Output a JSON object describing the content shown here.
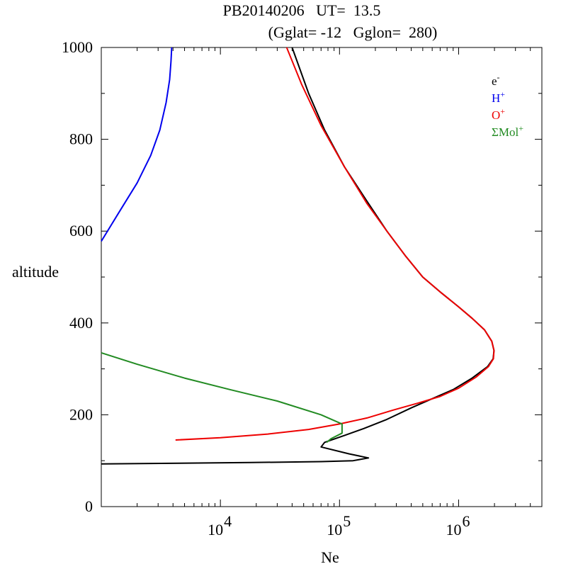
{
  "chart_data": {
    "type": "line",
    "title_line1": "PB20140206   UT=  13.5",
    "title_line2": "(Gglat= -12   Gglon=  280)",
    "xlabel": "Ne",
    "ylabel": "altitude",
    "xscale": "log",
    "xlim": [
      1000,
      5000000
    ],
    "ylim": [
      0,
      1000
    ],
    "y_ticks": [
      {
        "value": 0,
        "label": "0"
      },
      {
        "value": 200,
        "label": "200"
      },
      {
        "value": 400,
        "label": "400"
      },
      {
        "value": 600,
        "label": "600"
      },
      {
        "value": 800,
        "label": "800"
      },
      {
        "value": 1000,
        "label": "1000"
      }
    ],
    "x_ticks": [
      {
        "value": 10000,
        "base": "10",
        "exp": "4"
      },
      {
        "value": 100000,
        "base": "10",
        "exp": "5"
      },
      {
        "value": 1000000,
        "base": "10",
        "exp": "6"
      }
    ],
    "legend_position": "top-right",
    "series": [
      {
        "name": "e-",
        "legend_base": "e",
        "legend_sup": "-",
        "color": "#000000",
        "points": [
          [
            1000,
            93
          ],
          [
            18000,
            96
          ],
          [
            70000,
            98
          ],
          [
            130000,
            100
          ],
          [
            175000,
            106
          ],
          [
            120000,
            115
          ],
          [
            70000,
            130
          ],
          [
            75000,
            140
          ],
          [
            110000,
            155
          ],
          [
            160000,
            170
          ],
          [
            250000,
            190
          ],
          [
            400000,
            215
          ],
          [
            600000,
            235
          ],
          [
            900000,
            255
          ],
          [
            1300000,
            280
          ],
          [
            1750000,
            305
          ],
          [
            1950000,
            322
          ],
          [
            1980000,
            340
          ],
          [
            1900000,
            360
          ],
          [
            1650000,
            385
          ],
          [
            1300000,
            410
          ],
          [
            1000000,
            435
          ],
          [
            720000,
            465
          ],
          [
            500000,
            500
          ],
          [
            360000,
            545
          ],
          [
            250000,
            600
          ],
          [
            170000,
            665
          ],
          [
            110000,
            740
          ],
          [
            75000,
            820
          ],
          [
            55000,
            900
          ],
          [
            40000,
            1000
          ]
        ]
      },
      {
        "name": "H+",
        "legend_base": "H",
        "legend_sup": "+",
        "color": "#0000ee",
        "points": [
          [
            1000,
            578
          ],
          [
            1400,
            640
          ],
          [
            2000,
            705
          ],
          [
            2600,
            765
          ],
          [
            3100,
            820
          ],
          [
            3500,
            880
          ],
          [
            3750,
            930
          ],
          [
            3850,
            970
          ],
          [
            3900,
            1000
          ]
        ]
      },
      {
        "name": "O+",
        "legend_base": "O",
        "legend_sup": "+",
        "color": "#ee0000",
        "points": [
          [
            4200,
            145
          ],
          [
            10000,
            150
          ],
          [
            25000,
            158
          ],
          [
            55000,
            168
          ],
          [
            100000,
            180
          ],
          [
            170000,
            193
          ],
          [
            280000,
            210
          ],
          [
            450000,
            225
          ],
          [
            700000,
            240
          ],
          [
            1000000,
            258
          ],
          [
            1400000,
            282
          ],
          [
            1780000,
            305
          ],
          [
            1960000,
            322
          ],
          [
            1980000,
            340
          ],
          [
            1900000,
            360
          ],
          [
            1650000,
            385
          ],
          [
            1300000,
            410
          ],
          [
            1000000,
            435
          ],
          [
            720000,
            465
          ],
          [
            500000,
            500
          ],
          [
            360000,
            545
          ],
          [
            250000,
            600
          ],
          [
            170000,
            660
          ],
          [
            110000,
            740
          ],
          [
            70000,
            830
          ],
          [
            48000,
            920
          ],
          [
            36000,
            1000
          ]
        ]
      },
      {
        "name": "ΣMol+",
        "legend_base": "ΣMol",
        "legend_sup": "+",
        "color": "#228b22",
        "points": [
          [
            1000,
            335
          ],
          [
            2000,
            310
          ],
          [
            5000,
            280
          ],
          [
            12000,
            255
          ],
          [
            30000,
            230
          ],
          [
            70000,
            200
          ],
          [
            105000,
            180
          ],
          [
            105000,
            160
          ],
          [
            85000,
            148
          ],
          [
            78000,
            140
          ]
        ]
      }
    ]
  }
}
